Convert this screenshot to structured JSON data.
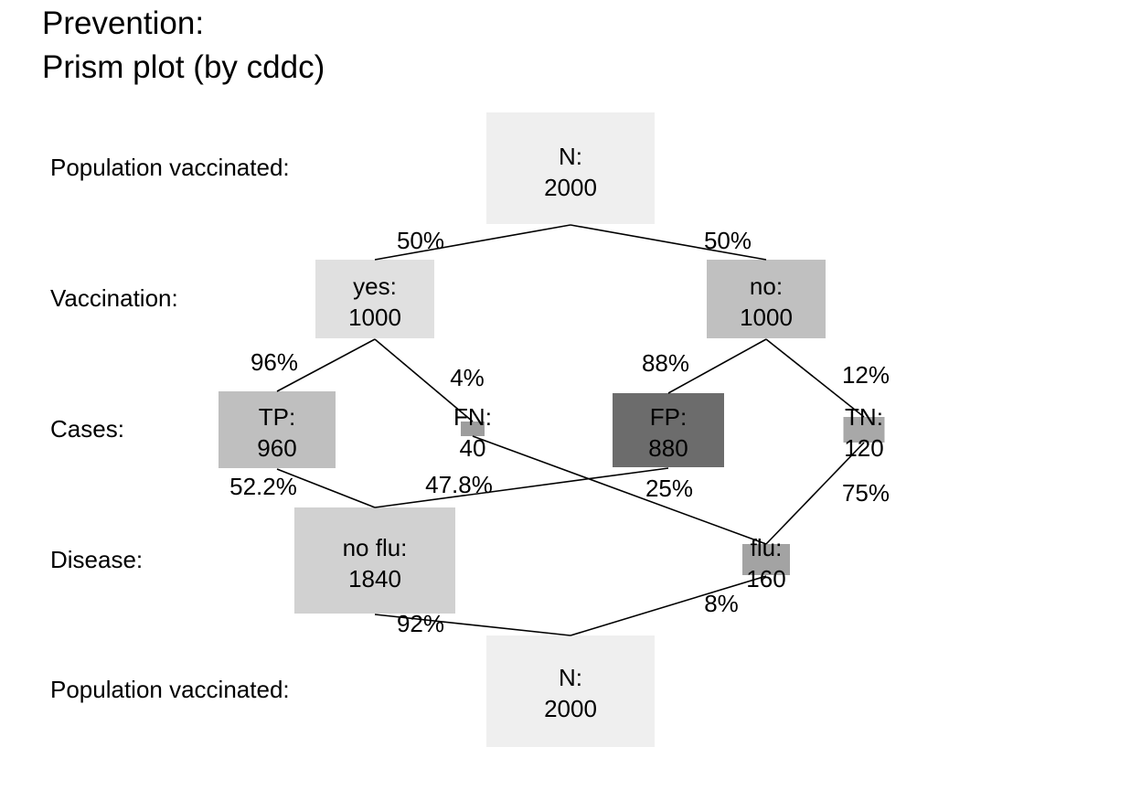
{
  "title": [
    "Prevention:",
    "Prism plot (by cddc)"
  ],
  "row_labels": {
    "top": "Population vaccinated:",
    "vaccination": "Vaccination:",
    "cases": "Cases:",
    "disease": "Disease:",
    "bottom": "Population vaccinated:"
  },
  "nodes": [
    {
      "id": "n-top",
      "label": "N:",
      "value": "2000",
      "color": "#efefef"
    },
    {
      "id": "yes",
      "label": "yes:",
      "value": "1000",
      "color": "#e0e0e0"
    },
    {
      "id": "no",
      "label": "no:",
      "value": "1000",
      "color": "#c0c0c0"
    },
    {
      "id": "tp",
      "label": "TP:",
      "value": "960",
      "color": "#bfbfbf"
    },
    {
      "id": "fn",
      "label": "FN:",
      "value": "40",
      "color": "#9d9d9d"
    },
    {
      "id": "fp",
      "label": "FP:",
      "value": "880",
      "color": "#6c6c6c"
    },
    {
      "id": "tn",
      "label": "TN:",
      "value": "120",
      "color": "#a8a8a8"
    },
    {
      "id": "noflu",
      "label": "no flu:",
      "value": "1840",
      "color": "#d1d1d1"
    },
    {
      "id": "flu",
      "label": "flu:",
      "value": "160",
      "color": "#a3a3a3"
    },
    {
      "id": "n-bottom",
      "label": "N:",
      "value": "2000",
      "color": "#efefef"
    }
  ],
  "edges": [
    {
      "id": "top-yes",
      "label": "50%"
    },
    {
      "id": "top-no",
      "label": "50%"
    },
    {
      "id": "yes-tp",
      "label": "96%"
    },
    {
      "id": "yes-fn",
      "label": "4%"
    },
    {
      "id": "no-fp",
      "label": "88%"
    },
    {
      "id": "no-tn",
      "label": "12%"
    },
    {
      "id": "tp-noflu",
      "label": "52.2%"
    },
    {
      "id": "fp-noflu",
      "label": "47.8%"
    },
    {
      "id": "fn-flu",
      "label": "25%"
    },
    {
      "id": "tn-flu",
      "label": "75%"
    },
    {
      "id": "noflu-bottom",
      "label": "92%"
    },
    {
      "id": "flu-bottom",
      "label": "8%"
    }
  ]
}
